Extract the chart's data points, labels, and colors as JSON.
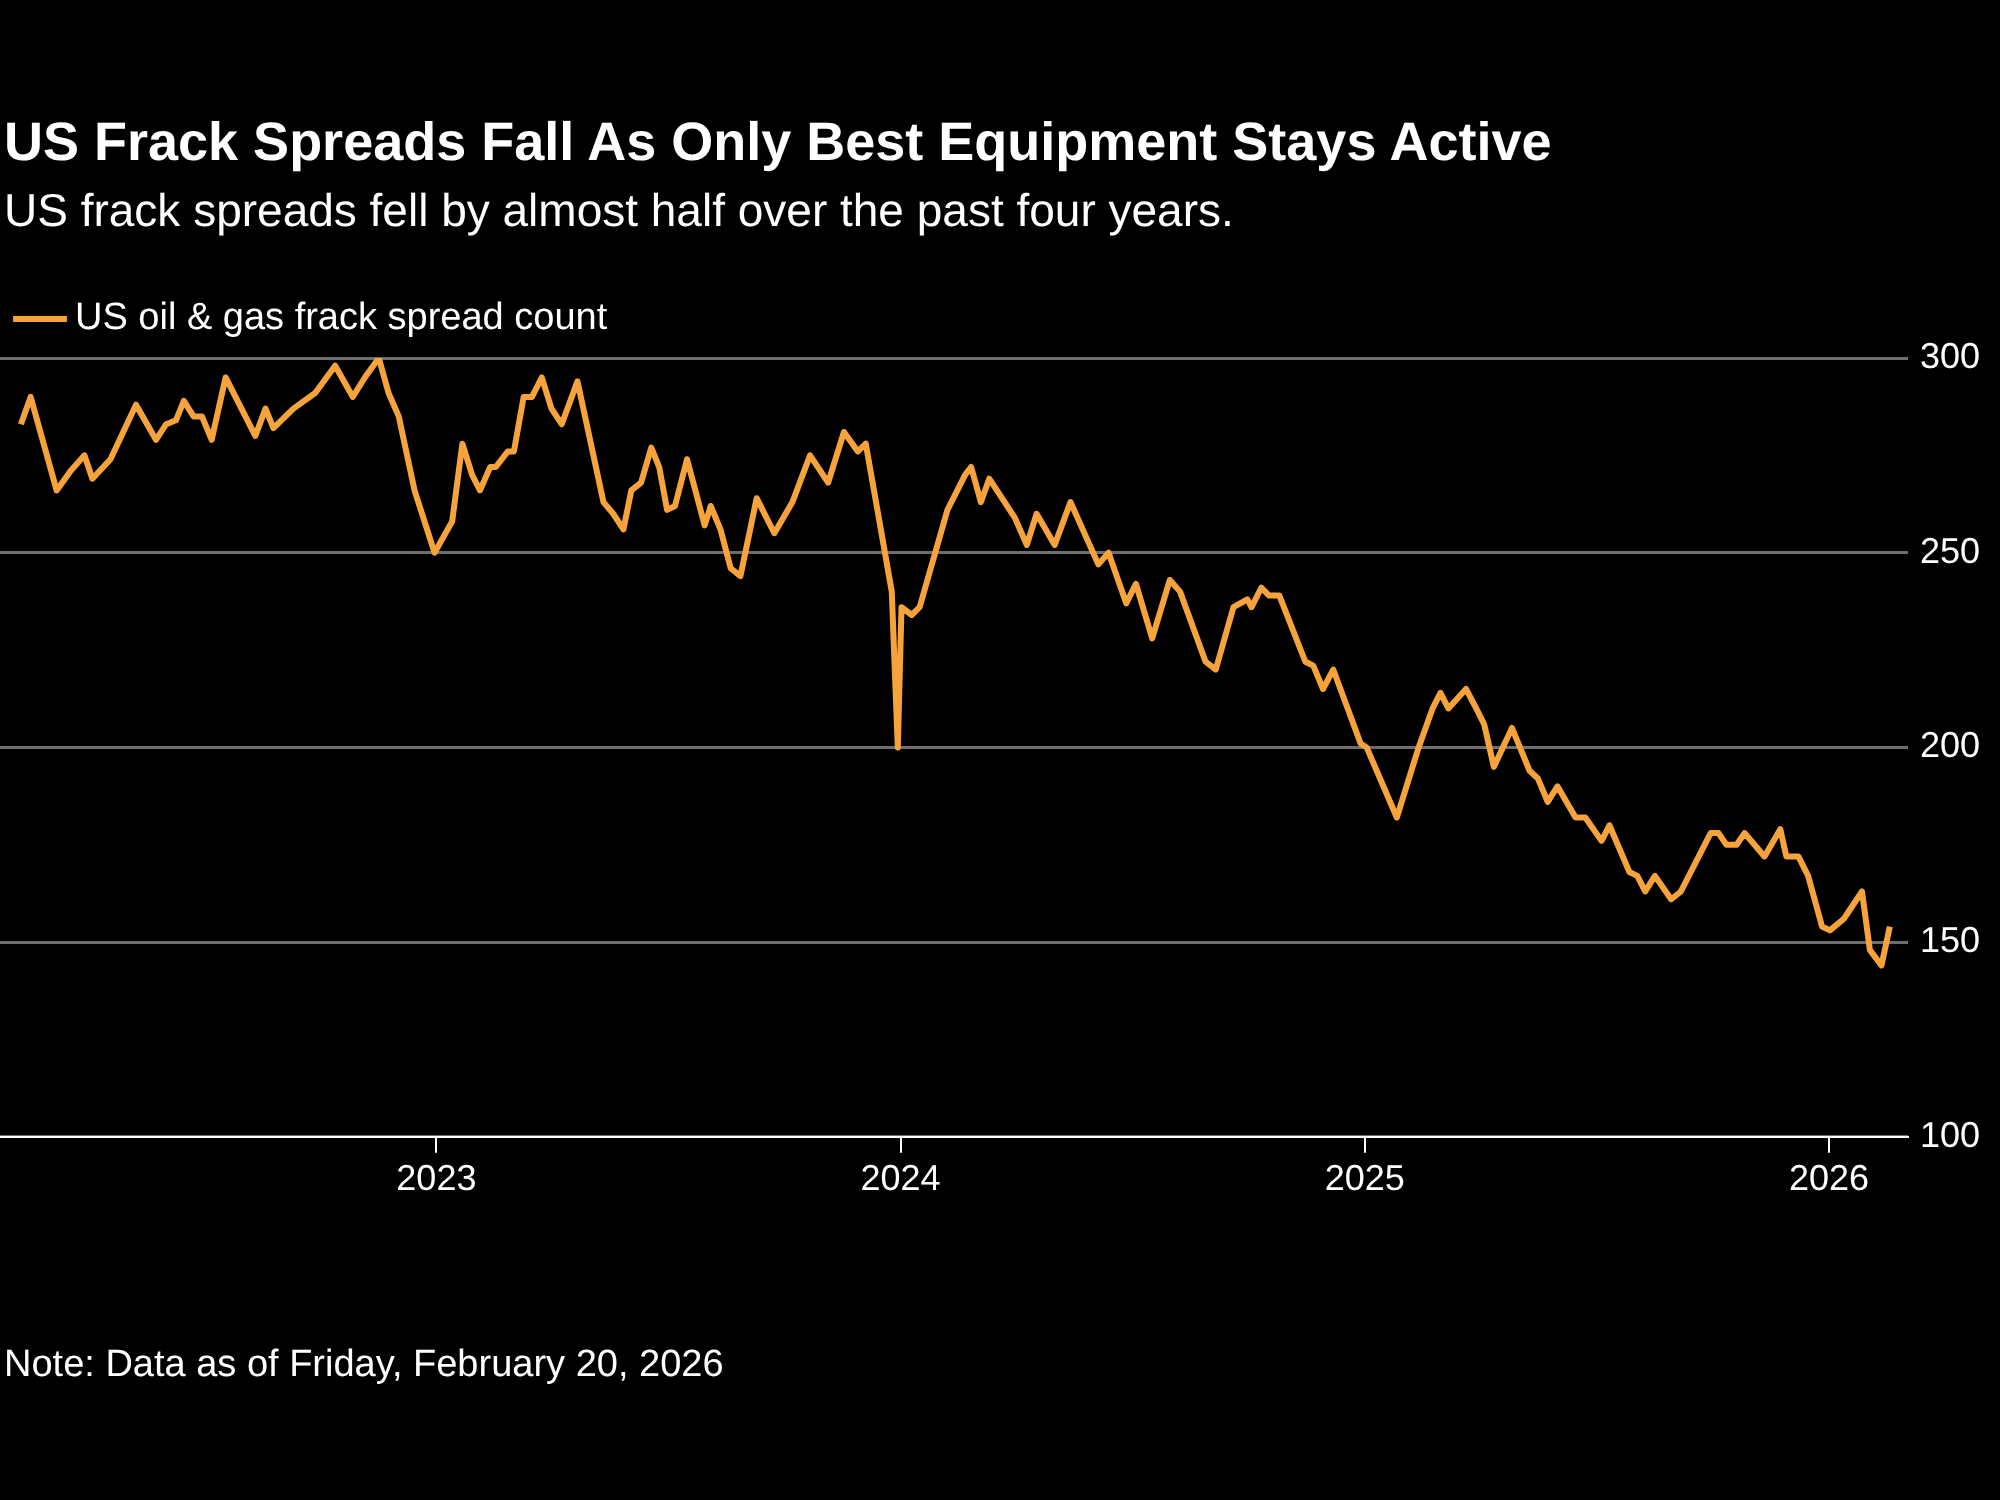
{
  "chart_data": {
    "type": "line",
    "title": "US Frack Spreads Fall As Only Best Equipment Stays Active",
    "subtitle": "US frack spreads fell by almost half over the past four years.",
    "annotations": [
      "Note: Data as of Friday, February 20, 2026"
    ],
    "x": [
      2022.105,
      2022.126,
      2022.182,
      2022.212,
      2022.242,
      2022.259,
      2022.298,
      2022.353,
      2022.396,
      2022.418,
      2022.439,
      2022.456,
      2022.477,
      2022.495,
      2022.516,
      2022.546,
      2022.61,
      2022.632,
      2022.649,
      2022.692,
      2022.739,
      2022.782,
      2022.82,
      2022.846,
      2022.876,
      2022.897,
      2022.919,
      2022.953,
      2022.996,
      2023.034,
      2023.056,
      2023.077,
      2023.094,
      2023.116,
      2023.128,
      2023.154,
      2023.167,
      2023.188,
      2023.206,
      2023.227,
      2023.248,
      2023.27,
      2023.304,
      2023.36,
      2023.381,
      2023.403,
      2023.42,
      2023.441,
      2023.463,
      2023.48,
      2023.497,
      2023.514,
      2023.54,
      2023.578,
      2023.591,
      2023.612,
      2023.634,
      2023.655,
      2023.69,
      2023.728,
      2023.767,
      2023.805,
      2023.844,
      2023.878,
      2023.908,
      2023.925,
      2023.981,
      2023.994,
      2024.002,
      2024.024,
      2024.041,
      2024.101,
      2024.139,
      2024.152,
      2024.173,
      2024.191,
      2024.246,
      2024.272,
      2024.293,
      2024.332,
      2024.366,
      2024.426,
      2024.448,
      2024.486,
      2024.507,
      2024.542,
      2024.58,
      2024.602,
      2024.657,
      2024.679,
      2024.717,
      2024.747,
      2024.756,
      2024.777,
      2024.794,
      2024.816,
      2024.872,
      2024.889,
      2024.91,
      2024.932,
      2024.991,
      2025.004,
      2025.069,
      2025.116,
      2025.146,
      2025.163,
      2025.18,
      2025.218,
      2025.24,
      2025.257,
      2025.278,
      2025.317,
      2025.355,
      2025.373,
      2025.394,
      2025.415,
      2025.454,
      2025.475,
      2025.51,
      2025.527,
      2025.57,
      2025.587,
      2025.604,
      2025.625,
      2025.66,
      2025.681,
      2025.745,
      2025.762,
      2025.779,
      2025.801,
      2025.818,
      2025.861,
      2025.895,
      2025.908,
      2025.934,
      2025.955,
      2025.985,
      2026.002,
      2026.032,
      2026.071,
      2026.088,
      2026.113,
      2026.131
    ],
    "series": [
      {
        "name": "US oil & gas frack spread count",
        "color": "#f7a33b",
        "values": [
          283,
          290,
          266,
          271,
          275,
          269,
          274,
          288,
          279,
          283,
          284,
          289,
          285,
          285,
          279,
          295,
          280,
          287,
          282,
          287,
          291,
          298,
          290,
          295,
          300,
          291,
          285,
          266,
          250,
          258,
          278,
          270,
          266,
          272,
          272,
          276,
          276,
          290,
          290,
          295,
          287,
          283,
          294,
          263,
          260,
          256,
          266,
          268,
          277,
          272,
          261,
          262,
          274,
          257,
          262,
          256,
          246,
          244,
          264,
          255,
          263,
          275,
          268,
          281,
          276,
          278,
          240,
          200,
          236,
          234,
          236,
          261,
          270,
          272,
          263,
          269,
          259,
          252,
          260,
          252,
          263,
          247,
          250,
          237,
          242,
          228,
          243,
          240,
          222,
          220,
          236,
          238,
          236,
          241,
          239,
          239,
          222,
          221,
          215,
          220,
          201,
          200,
          182,
          200,
          210,
          214,
          210,
          215,
          210,
          206,
          195,
          205,
          194,
          192,
          186,
          190,
          182,
          182,
          176,
          180,
          168,
          167,
          163,
          167,
          161,
          163,
          178,
          178,
          175,
          175,
          178,
          172,
          179,
          172,
          172,
          167,
          154,
          153,
          156,
          163,
          148,
          144,
          154
        ]
      }
    ],
    "xlim": [
      2022.06,
      2026.17
    ],
    "xticks": [
      2023,
      2024,
      2025,
      2026
    ],
    "ylim": [
      100,
      300
    ],
    "yticks": [
      100,
      150,
      200,
      250,
      300
    ],
    "grid": "y",
    "legend": "top left",
    "marker": "none",
    "line_style": "solid"
  }
}
